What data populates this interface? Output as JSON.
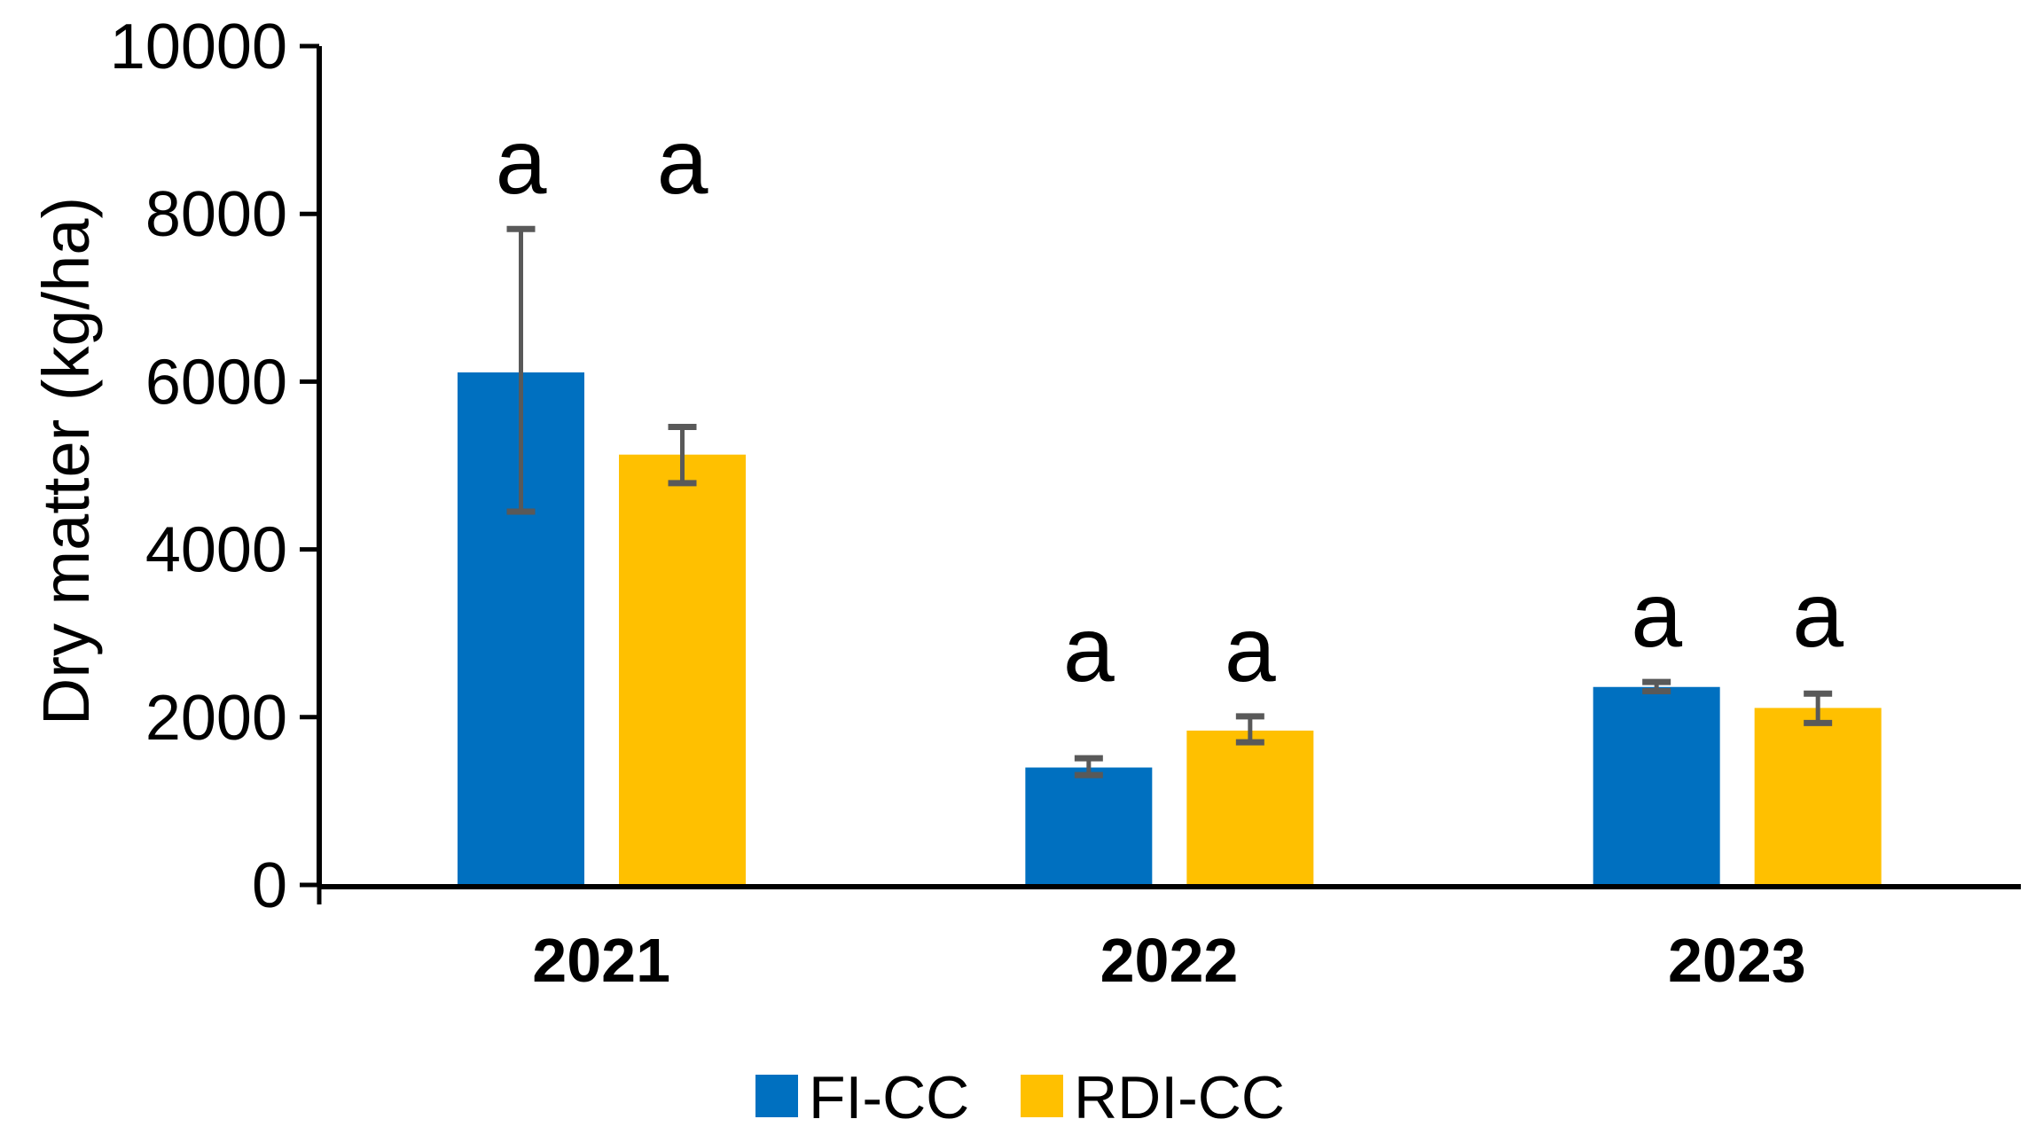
{
  "figure": {
    "background": "#ffffff",
    "axis_color": "#000000",
    "error_bar_color": "#595959"
  },
  "chart_data": {
    "type": "bar",
    "title": "",
    "xlabel": "",
    "ylabel": "Dry matter (kg/ha)",
    "categories": [
      "2021",
      "2022",
      "2023"
    ],
    "series": [
      {
        "name": "FI-CC",
        "color": "#0070C0",
        "values": [
          6110,
          1400,
          2360
        ],
        "error_high": [
          7820,
          1510,
          2420
        ],
        "error_low": [
          4450,
          1310,
          2310
        ]
      },
      {
        "name": "RDI-CC",
        "color": "#FFC000",
        "values": [
          5130,
          1840,
          2110
        ],
        "error_high": [
          5460,
          2010,
          2280
        ],
        "error_low": [
          4790,
          1700,
          1930
        ]
      }
    ],
    "letters": [
      [
        "a",
        "a"
      ],
      [
        "a",
        "a"
      ],
      [
        "a",
        "a"
      ]
    ],
    "ylim": [
      0,
      10000
    ],
    "ytick_interval": 2000,
    "yticks": [
      0,
      2000,
      4000,
      6000,
      8000,
      10000
    ],
    "grid": false,
    "legend_position": "bottom"
  },
  "legend": {
    "items": [
      {
        "label": "FI-CC",
        "color": "#0070C0"
      },
      {
        "label": "RDI-CC",
        "color": "#FFC000"
      }
    ]
  }
}
